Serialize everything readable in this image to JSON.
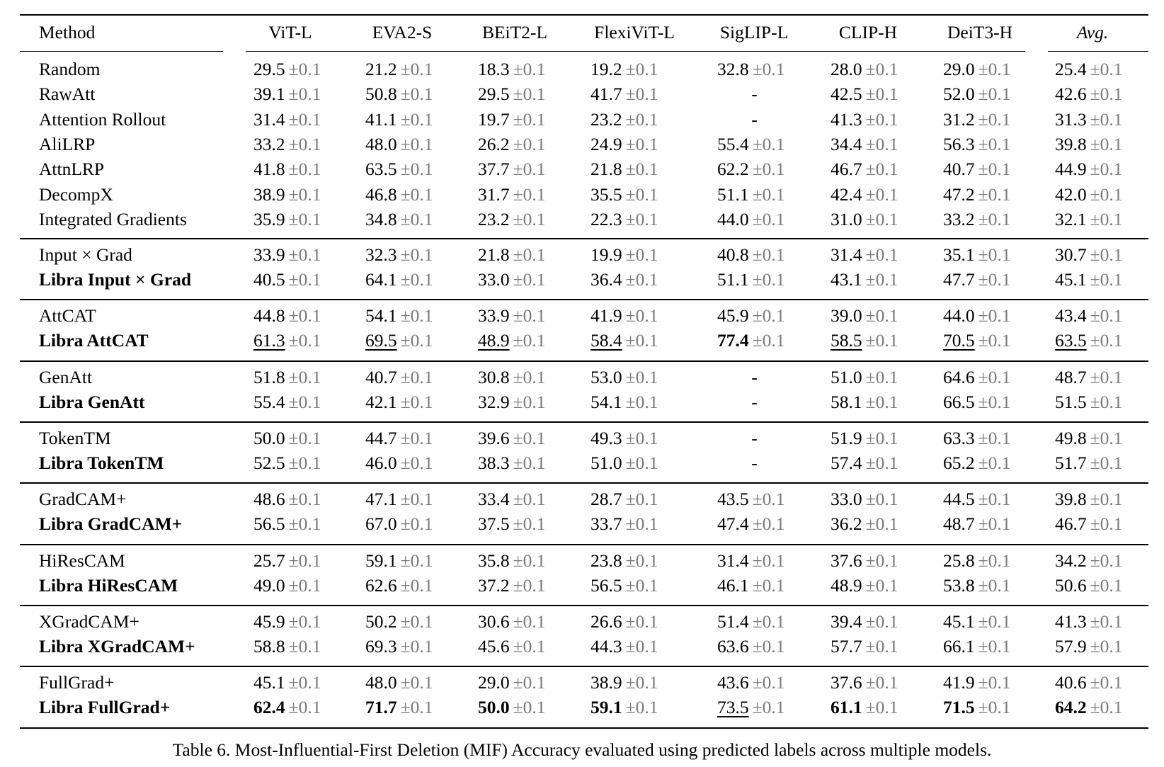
{
  "table": {
    "columns": [
      "Method",
      "ViT-L",
      "EVA2-S",
      "BEiT2-L",
      "FlexiViT-L",
      "SigLIP-L",
      "CLIP-H",
      "DeiT3-H",
      "Avg."
    ],
    "std_label": "±0.1",
    "std_color": "#7a7a7a",
    "groups": [
      [
        {
          "method": "Random",
          "bold": false,
          "cells": [
            {
              "v": "29.5"
            },
            {
              "v": "21.2"
            },
            {
              "v": "18.3"
            },
            {
              "v": "19.2"
            },
            {
              "v": "32.8"
            },
            {
              "v": "28.0"
            },
            {
              "v": "29.0"
            },
            {
              "v": "25.4"
            }
          ]
        },
        {
          "method": "RawAtt",
          "bold": false,
          "cells": [
            {
              "v": "39.1"
            },
            {
              "v": "50.8"
            },
            {
              "v": "29.5"
            },
            {
              "v": "41.7"
            },
            {
              "v": "-"
            },
            {
              "v": "42.5"
            },
            {
              "v": "52.0"
            },
            {
              "v": "42.6"
            }
          ]
        },
        {
          "method": "Attention Rollout",
          "bold": false,
          "cells": [
            {
              "v": "31.4"
            },
            {
              "v": "41.1"
            },
            {
              "v": "19.7"
            },
            {
              "v": "23.2"
            },
            {
              "v": "-"
            },
            {
              "v": "41.3"
            },
            {
              "v": "31.2"
            },
            {
              "v": "31.3"
            }
          ]
        },
        {
          "method": "AliLRP",
          "bold": false,
          "cells": [
            {
              "v": "33.2"
            },
            {
              "v": "48.0"
            },
            {
              "v": "26.2"
            },
            {
              "v": "24.9"
            },
            {
              "v": "55.4"
            },
            {
              "v": "34.4"
            },
            {
              "v": "56.3"
            },
            {
              "v": "39.8"
            }
          ]
        },
        {
          "method": "AttnLRP",
          "bold": false,
          "cells": [
            {
              "v": "41.8"
            },
            {
              "v": "63.5"
            },
            {
              "v": "37.7"
            },
            {
              "v": "21.8"
            },
            {
              "v": "62.2"
            },
            {
              "v": "46.7"
            },
            {
              "v": "40.7"
            },
            {
              "v": "44.9"
            }
          ]
        },
        {
          "method": "DecompX",
          "bold": false,
          "cells": [
            {
              "v": "38.9"
            },
            {
              "v": "46.8"
            },
            {
              "v": "31.7"
            },
            {
              "v": "35.5"
            },
            {
              "v": "51.1"
            },
            {
              "v": "42.4"
            },
            {
              "v": "47.2"
            },
            {
              "v": "42.0"
            }
          ]
        },
        {
          "method": "Integrated Gradients",
          "bold": false,
          "cells": [
            {
              "v": "35.9"
            },
            {
              "v": "34.8"
            },
            {
              "v": "23.2"
            },
            {
              "v": "22.3"
            },
            {
              "v": "44.0"
            },
            {
              "v": "31.0"
            },
            {
              "v": "33.2"
            },
            {
              "v": "32.1"
            }
          ]
        }
      ],
      [
        {
          "method": "Input × Grad",
          "bold": false,
          "cells": [
            {
              "v": "33.9"
            },
            {
              "v": "32.3"
            },
            {
              "v": "21.8"
            },
            {
              "v": "19.9"
            },
            {
              "v": "40.8"
            },
            {
              "v": "31.4"
            },
            {
              "v": "35.1"
            },
            {
              "v": "30.7"
            }
          ]
        },
        {
          "method": "Libra Input × Grad",
          "bold": true,
          "cells": [
            {
              "v": "40.5"
            },
            {
              "v": "64.1"
            },
            {
              "v": "33.0"
            },
            {
              "v": "36.4"
            },
            {
              "v": "51.1"
            },
            {
              "v": "43.1"
            },
            {
              "v": "47.7"
            },
            {
              "v": "45.1"
            }
          ]
        }
      ],
      [
        {
          "method": "AttCAT",
          "bold": false,
          "cells": [
            {
              "v": "44.8"
            },
            {
              "v": "54.1"
            },
            {
              "v": "33.9"
            },
            {
              "v": "41.9"
            },
            {
              "v": "45.9"
            },
            {
              "v": "39.0"
            },
            {
              "v": "44.0"
            },
            {
              "v": "43.4"
            }
          ]
        },
        {
          "method": "Libra AttCAT",
          "bold": true,
          "cells": [
            {
              "v": "61.3",
              "s": "under"
            },
            {
              "v": "69.5",
              "s": "under"
            },
            {
              "v": "48.9",
              "s": "under"
            },
            {
              "v": "58.4",
              "s": "under"
            },
            {
              "v": "77.4",
              "s": "bold"
            },
            {
              "v": "58.5",
              "s": "under"
            },
            {
              "v": "70.5",
              "s": "under"
            },
            {
              "v": "63.5",
              "s": "under"
            }
          ]
        }
      ],
      [
        {
          "method": "GenAtt",
          "bold": false,
          "cells": [
            {
              "v": "51.8"
            },
            {
              "v": "40.7"
            },
            {
              "v": "30.8"
            },
            {
              "v": "53.0"
            },
            {
              "v": "-"
            },
            {
              "v": "51.0"
            },
            {
              "v": "64.6"
            },
            {
              "v": "48.7"
            }
          ]
        },
        {
          "method": "Libra GenAtt",
          "bold": true,
          "cells": [
            {
              "v": "55.4"
            },
            {
              "v": "42.1"
            },
            {
              "v": "32.9"
            },
            {
              "v": "54.1"
            },
            {
              "v": "-"
            },
            {
              "v": "58.1"
            },
            {
              "v": "66.5"
            },
            {
              "v": "51.5"
            }
          ]
        }
      ],
      [
        {
          "method": "TokenTM",
          "bold": false,
          "cells": [
            {
              "v": "50.0"
            },
            {
              "v": "44.7"
            },
            {
              "v": "39.6"
            },
            {
              "v": "49.3"
            },
            {
              "v": "-"
            },
            {
              "v": "51.9"
            },
            {
              "v": "63.3"
            },
            {
              "v": "49.8"
            }
          ]
        },
        {
          "method": "Libra TokenTM",
          "bold": true,
          "cells": [
            {
              "v": "52.5"
            },
            {
              "v": "46.0"
            },
            {
              "v": "38.3"
            },
            {
              "v": "51.0"
            },
            {
              "v": "-"
            },
            {
              "v": "57.4"
            },
            {
              "v": "65.2"
            },
            {
              "v": "51.7"
            }
          ]
        }
      ],
      [
        {
          "method": "GradCAM+",
          "bold": false,
          "cells": [
            {
              "v": "48.6"
            },
            {
              "v": "47.1"
            },
            {
              "v": "33.4"
            },
            {
              "v": "28.7"
            },
            {
              "v": "43.5"
            },
            {
              "v": "33.0"
            },
            {
              "v": "44.5"
            },
            {
              "v": "39.8"
            }
          ]
        },
        {
          "method": "Libra GradCAM+",
          "bold": true,
          "cells": [
            {
              "v": "56.5"
            },
            {
              "v": "67.0"
            },
            {
              "v": "37.5"
            },
            {
              "v": "33.7"
            },
            {
              "v": "47.4"
            },
            {
              "v": "36.2"
            },
            {
              "v": "48.7"
            },
            {
              "v": "46.7"
            }
          ]
        }
      ],
      [
        {
          "method": "HiResCAM",
          "bold": false,
          "cells": [
            {
              "v": "25.7"
            },
            {
              "v": "59.1"
            },
            {
              "v": "35.8"
            },
            {
              "v": "23.8"
            },
            {
              "v": "31.4"
            },
            {
              "v": "37.6"
            },
            {
              "v": "25.8"
            },
            {
              "v": "34.2"
            }
          ]
        },
        {
          "method": "Libra HiResCAM",
          "bold": true,
          "cells": [
            {
              "v": "49.0"
            },
            {
              "v": "62.6"
            },
            {
              "v": "37.2"
            },
            {
              "v": "56.5"
            },
            {
              "v": "46.1"
            },
            {
              "v": "48.9"
            },
            {
              "v": "53.8"
            },
            {
              "v": "50.6"
            }
          ]
        }
      ],
      [
        {
          "method": "XGradCAM+",
          "bold": false,
          "cells": [
            {
              "v": "45.9"
            },
            {
              "v": "50.2"
            },
            {
              "v": "30.6"
            },
            {
              "v": "26.6"
            },
            {
              "v": "51.4"
            },
            {
              "v": "39.4"
            },
            {
              "v": "45.1"
            },
            {
              "v": "41.3"
            }
          ]
        },
        {
          "method": "Libra XGradCAM+",
          "bold": true,
          "cells": [
            {
              "v": "58.8"
            },
            {
              "v": "69.3"
            },
            {
              "v": "45.6"
            },
            {
              "v": "44.3"
            },
            {
              "v": "63.6"
            },
            {
              "v": "57.7"
            },
            {
              "v": "66.1"
            },
            {
              "v": "57.9"
            }
          ]
        }
      ],
      [
        {
          "method": "FullGrad+",
          "bold": false,
          "cells": [
            {
              "v": "45.1"
            },
            {
              "v": "48.0"
            },
            {
              "v": "29.0"
            },
            {
              "v": "38.9"
            },
            {
              "v": "43.6"
            },
            {
              "v": "37.6"
            },
            {
              "v": "41.9"
            },
            {
              "v": "40.6"
            }
          ]
        },
        {
          "method": "Libra FullGrad+",
          "bold": true,
          "cells": [
            {
              "v": "62.4",
              "s": "bold"
            },
            {
              "v": "71.7",
              "s": "bold"
            },
            {
              "v": "50.0",
              "s": "bold"
            },
            {
              "v": "59.1",
              "s": "bold"
            },
            {
              "v": "73.5",
              "s": "under"
            },
            {
              "v": "61.1",
              "s": "bold"
            },
            {
              "v": "71.5",
              "s": "bold"
            },
            {
              "v": "64.2",
              "s": "bold"
            }
          ]
        }
      ]
    ]
  },
  "caption": "Table 6. Most-Influential-First Deletion (MIF) Accuracy evaluated using predicted labels across multiple models."
}
